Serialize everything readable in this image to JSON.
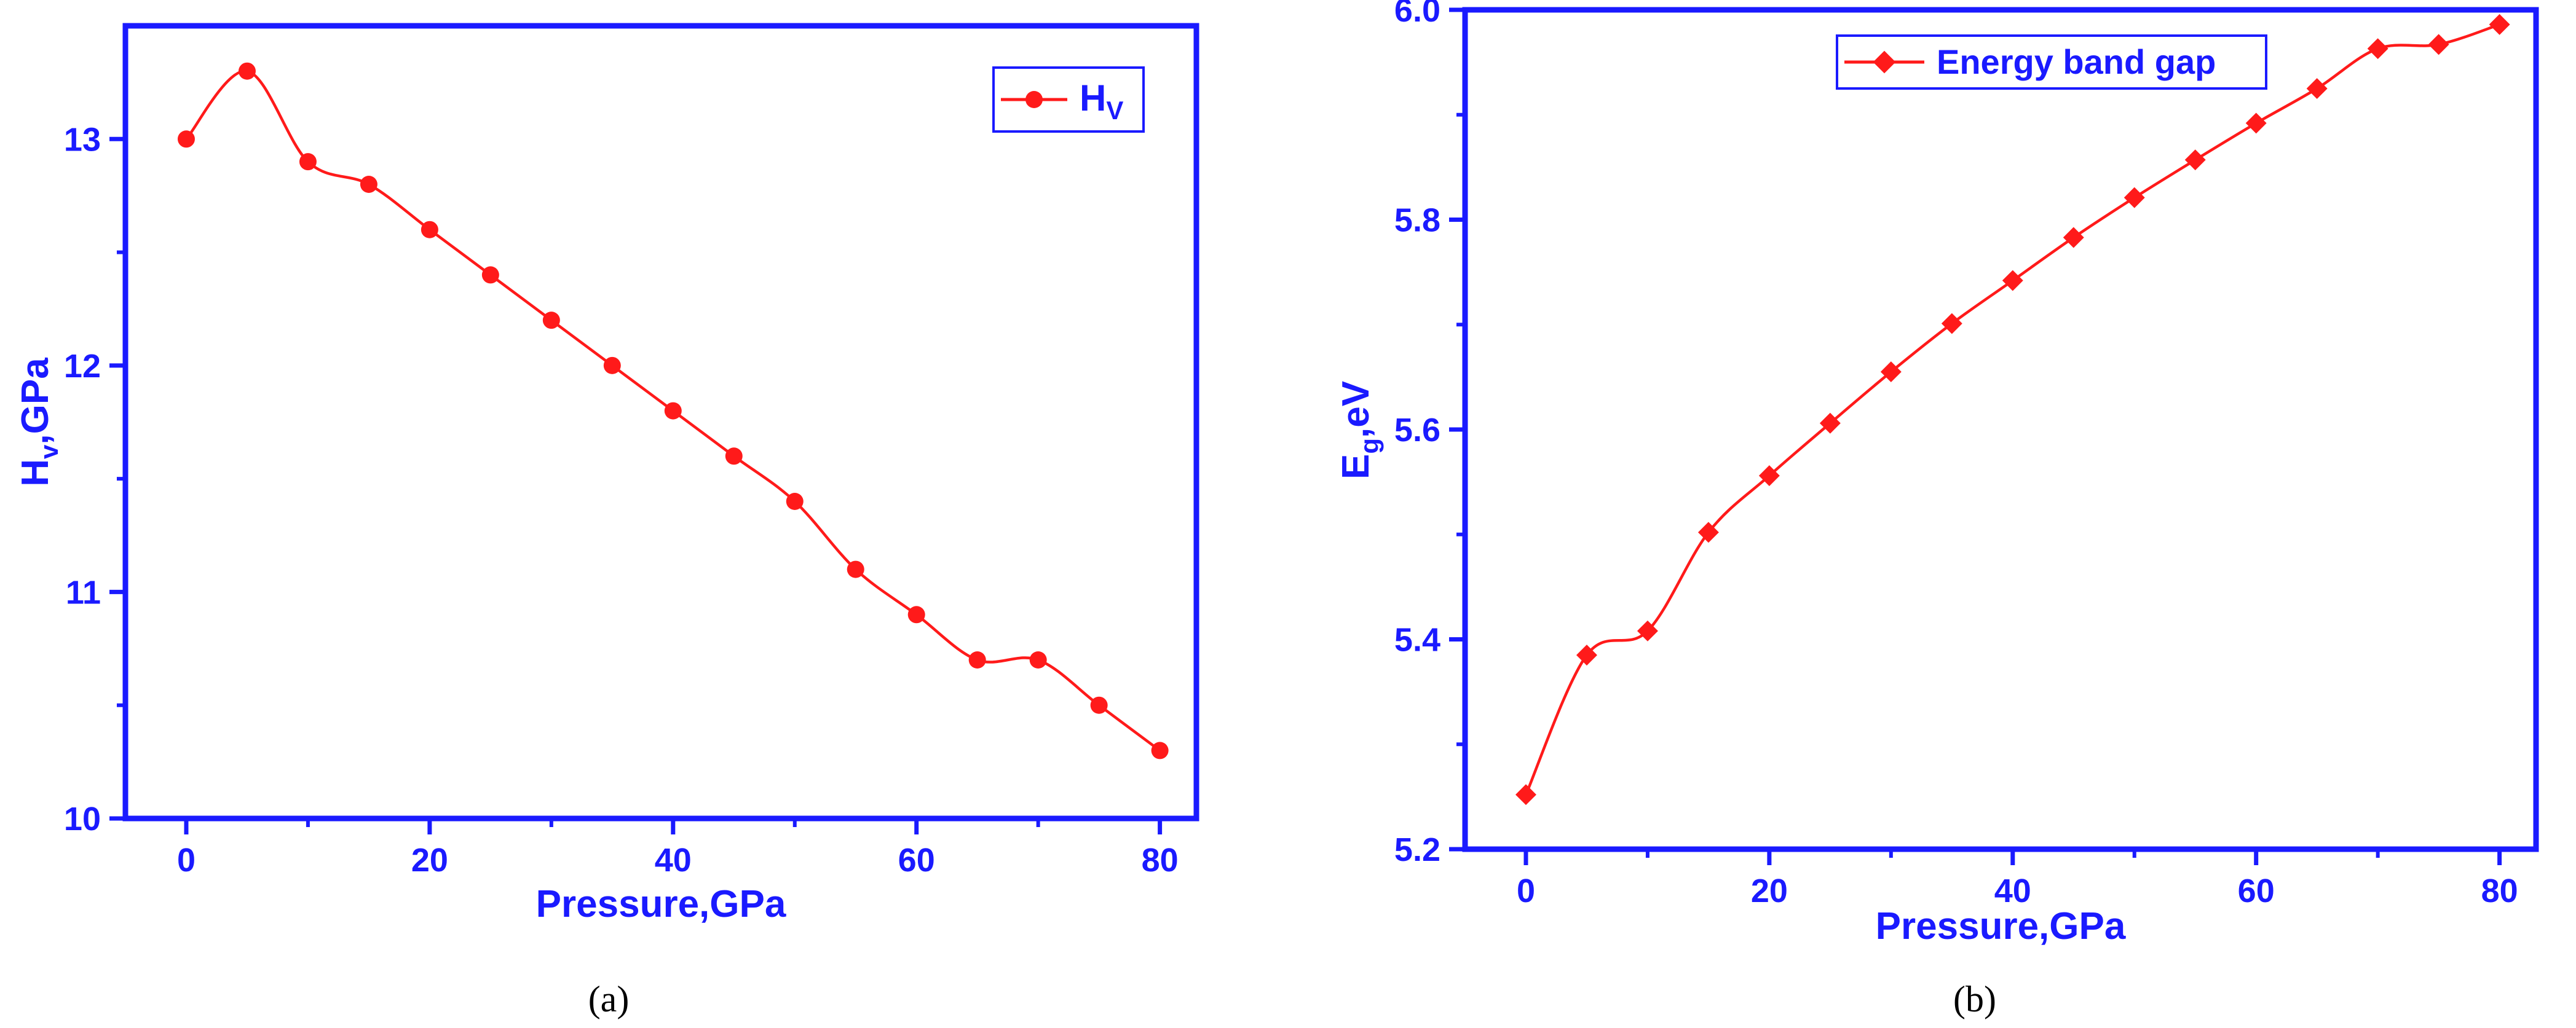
{
  "colors": {
    "axis": "#1a1aff",
    "series": "#ff1a1a",
    "legend_border": "#1a1aff"
  },
  "chart_data": [
    {
      "type": "line",
      "caption": "(a)",
      "xlabel": "Pressure,GPa",
      "ylabel_main": "H",
      "ylabel_sub": "v",
      "ylabel_tail": ",GPa",
      "xlim": [
        -5,
        83
      ],
      "ylim": [
        10,
        13.5
      ],
      "xticks": [
        0,
        20,
        40,
        60,
        80
      ],
      "yticks": [
        10,
        11,
        12,
        13
      ],
      "xtick_labels": [
        "0",
        "20",
        "40",
        "60",
        "80"
      ],
      "ytick_labels": [
        "10",
        "11",
        "12",
        "13"
      ],
      "legend": {
        "position": "top-right",
        "label_main": "H",
        "label_sub": "V",
        "marker": "circle"
      },
      "series": [
        {
          "name": "Hv",
          "marker": "circle",
          "x": [
            0,
            5,
            10,
            15,
            20,
            25,
            30,
            35,
            40,
            45,
            50,
            55,
            60,
            65,
            70,
            75,
            80
          ],
          "y": [
            13.0,
            13.3,
            12.9,
            12.8,
            12.6,
            12.4,
            12.2,
            12.0,
            11.8,
            11.6,
            11.4,
            11.1,
            10.9,
            10.7,
            10.7,
            10.5,
            10.3
          ]
        }
      ]
    },
    {
      "type": "line",
      "caption": "(b)",
      "xlabel": "Pressure,GPa",
      "ylabel_main": "E",
      "ylabel_sub": "g",
      "ylabel_tail": ",eV",
      "xlim": [
        -5,
        83
      ],
      "ylim": [
        5.2,
        6.0
      ],
      "xticks": [
        0,
        20,
        40,
        60,
        80
      ],
      "yticks": [
        5.2,
        5.4,
        5.6,
        5.8,
        6.0
      ],
      "xtick_labels": [
        "0",
        "20",
        "40",
        "60",
        "80"
      ],
      "ytick_labels": [
        "5.2",
        "5.4",
        "5.6",
        "5.8",
        "6.0"
      ],
      "legend": {
        "position": "top-right",
        "label_main": "Energy band gap",
        "label_sub": "",
        "marker": "diamond"
      },
      "series": [
        {
          "name": "Energy band gap",
          "marker": "diamond",
          "x": [
            0,
            5,
            10,
            15,
            20,
            25,
            30,
            35,
            40,
            45,
            50,
            55,
            60,
            65,
            70,
            75,
            80
          ],
          "y": [
            5.252,
            5.385,
            5.408,
            5.502,
            5.556,
            5.606,
            5.655,
            5.701,
            5.742,
            5.783,
            5.821,
            5.857,
            5.892,
            5.925,
            5.963,
            5.967,
            5.986
          ]
        }
      ]
    }
  ]
}
